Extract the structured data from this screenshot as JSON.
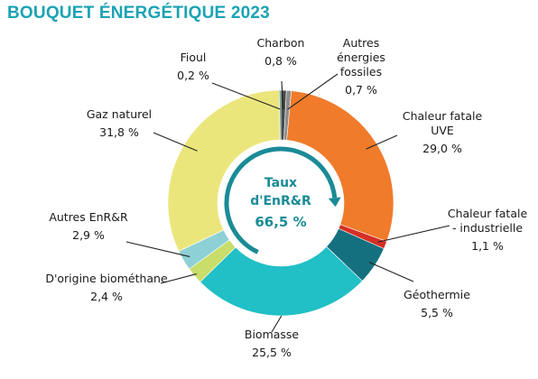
{
  "title": "BOUQUET ÉNERGÉTIQUE 2023",
  "chart_data": {
    "type": "pie",
    "variant": "donut",
    "title": "BOUQUET ÉNERGÉTIQUE 2023",
    "categories": [
      "Charbon",
      "Autres énergies fossiles",
      "Chaleur fatale UVE",
      "Chaleur fatale - industrielle",
      "Géothermie",
      "Biomasse",
      "D'origine biométhane",
      "Autres EnR&R",
      "Gaz naturel",
      "Fioul"
    ],
    "series": [
      {
        "values": [
          0.8,
          0.7,
          29.0,
          1.1,
          5.5,
          25.5,
          2.4,
          2.9,
          31.8,
          0.2
        ]
      }
    ],
    "labels": [
      {
        "lines": [
          "Charbon"
        ],
        "value": "0,8 %"
      },
      {
        "lines": [
          "Autres",
          "énergies",
          "fossiles"
        ],
        "value": "0,7 %"
      },
      {
        "lines": [
          "Chaleur fatale",
          "UVE"
        ],
        "value": "29,0 %"
      },
      {
        "lines": [
          "Chaleur fatale",
          "- industrielle"
        ],
        "value": "1,1 %"
      },
      {
        "lines": [
          "Géothermie"
        ],
        "value": "5,5 %"
      },
      {
        "lines": [
          "Biomasse"
        ],
        "value": "25,5 %"
      },
      {
        "lines": [
          "D'origine biométhane"
        ],
        "value": "2,4 %"
      },
      {
        "lines": [
          "Autres EnR&R"
        ],
        "value": "2,9 %"
      },
      {
        "lines": [
          "Gaz naturel"
        ],
        "value": "31,8 %"
      },
      {
        "lines": [
          "Fioul"
        ],
        "value": "0,2 %"
      }
    ],
    "colors": [
      "#4a4a4a",
      "#8c8c8c",
      "#f07b2b",
      "#d62f26",
      "#14707f",
      "#21bfc6",
      "#c9dd6a",
      "#8dd1d6",
      "#ebe67c",
      "#2b8a6b"
    ],
    "center": {
      "title_line1": "Taux",
      "title_line2": "d'EnR&R",
      "value": "66,5 %",
      "renewable_share": 66.5,
      "text_color": "#1a8b96",
      "ring_color": "#1a8b96"
    }
  }
}
